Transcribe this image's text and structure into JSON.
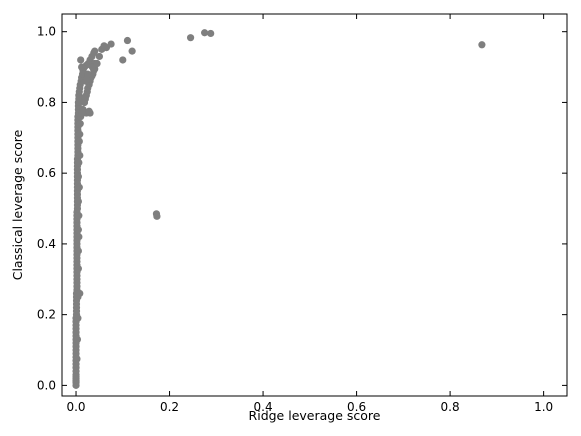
{
  "chart_data": {
    "type": "scatter",
    "title": "",
    "xlabel": "Ridge leverage score",
    "ylabel": "Classical leverage score",
    "xlim": [
      -0.03,
      1.05
    ],
    "ylim": [
      -0.03,
      1.05
    ],
    "xticks": [
      0.0,
      0.2,
      0.4,
      0.6,
      0.8,
      1.0
    ],
    "yticks": [
      0.0,
      0.2,
      0.4,
      0.6,
      0.8,
      1.0
    ],
    "xtick_labels": [
      "0.0",
      "0.2",
      "0.4",
      "0.6",
      "0.8",
      "1.0"
    ],
    "ytick_labels": [
      "0.0",
      "0.2",
      "0.4",
      "0.6",
      "0.8",
      "1.0"
    ],
    "grid": false,
    "legend": "none",
    "marker_color": "#7f7f7f",
    "points": [
      [
        0.0,
        0.0
      ],
      [
        0.0,
        0.01
      ],
      [
        0.0,
        0.02
      ],
      [
        0.0,
        0.03
      ],
      [
        0.0,
        0.04
      ],
      [
        0.0,
        0.05
      ],
      [
        0.0,
        0.06
      ],
      [
        0.0,
        0.07
      ],
      [
        0.0,
        0.08
      ],
      [
        0.0,
        0.09
      ],
      [
        0.0,
        0.1
      ],
      [
        0.0,
        0.11
      ],
      [
        0.0,
        0.12
      ],
      [
        0.0,
        0.13
      ],
      [
        0.0,
        0.14
      ],
      [
        0.0,
        0.15
      ],
      [
        0.0,
        0.16
      ],
      [
        0.0,
        0.17
      ],
      [
        0.0,
        0.18
      ],
      [
        0.0,
        0.19
      ],
      [
        0.001,
        0.2
      ],
      [
        0.001,
        0.21
      ],
      [
        0.001,
        0.22
      ],
      [
        0.001,
        0.23
      ],
      [
        0.001,
        0.24
      ],
      [
        0.001,
        0.25
      ],
      [
        0.001,
        0.26
      ],
      [
        0.002,
        0.27
      ],
      [
        0.002,
        0.28
      ],
      [
        0.002,
        0.29
      ],
      [
        0.002,
        0.3
      ],
      [
        0.002,
        0.31
      ],
      [
        0.002,
        0.32
      ],
      [
        0.002,
        0.33
      ],
      [
        0.002,
        0.34
      ],
      [
        0.002,
        0.35
      ],
      [
        0.002,
        0.36
      ],
      [
        0.002,
        0.37
      ],
      [
        0.002,
        0.38
      ],
      [
        0.002,
        0.39
      ],
      [
        0.002,
        0.4
      ],
      [
        0.002,
        0.41
      ],
      [
        0.002,
        0.42
      ],
      [
        0.002,
        0.43
      ],
      [
        0.002,
        0.44
      ],
      [
        0.002,
        0.45
      ],
      [
        0.002,
        0.46
      ],
      [
        0.002,
        0.47
      ],
      [
        0.002,
        0.48
      ],
      [
        0.002,
        0.49
      ],
      [
        0.003,
        0.5
      ],
      [
        0.003,
        0.51
      ],
      [
        0.003,
        0.52
      ],
      [
        0.003,
        0.53
      ],
      [
        0.003,
        0.54
      ],
      [
        0.003,
        0.55
      ],
      [
        0.003,
        0.56
      ],
      [
        0.003,
        0.57
      ],
      [
        0.003,
        0.58
      ],
      [
        0.003,
        0.59
      ],
      [
        0.003,
        0.6
      ],
      [
        0.003,
        0.61
      ],
      [
        0.003,
        0.62
      ],
      [
        0.003,
        0.63
      ],
      [
        0.003,
        0.64
      ],
      [
        0.004,
        0.65
      ],
      [
        0.004,
        0.66
      ],
      [
        0.004,
        0.67
      ],
      [
        0.004,
        0.68
      ],
      [
        0.004,
        0.69
      ],
      [
        0.004,
        0.7
      ],
      [
        0.004,
        0.71
      ],
      [
        0.004,
        0.72
      ],
      [
        0.004,
        0.73
      ],
      [
        0.004,
        0.74
      ],
      [
        0.004,
        0.75
      ],
      [
        0.004,
        0.76
      ],
      [
        0.005,
        0.77
      ],
      [
        0.005,
        0.78
      ],
      [
        0.005,
        0.79
      ],
      [
        0.005,
        0.8
      ],
      [
        0.006,
        0.81
      ],
      [
        0.006,
        0.82
      ],
      [
        0.007,
        0.83
      ],
      [
        0.008,
        0.84
      ],
      [
        0.009,
        0.85
      ],
      [
        0.011,
        0.86
      ],
      [
        0.012,
        0.87
      ],
      [
        0.014,
        0.88
      ],
      [
        0.015,
        0.89
      ],
      [
        0.018,
        0.9
      ],
      [
        0.022,
        0.905
      ],
      [
        0.026,
        0.91
      ],
      [
        0.03,
        0.92
      ],
      [
        0.034,
        0.93
      ],
      [
        0.038,
        0.94
      ],
      [
        0.04,
        0.945
      ],
      [
        0.005,
        0.38
      ],
      [
        0.006,
        0.42
      ],
      [
        0.005,
        0.52
      ],
      [
        0.002,
        0.075
      ],
      [
        0.003,
        0.13
      ],
      [
        0.004,
        0.19
      ],
      [
        0.004,
        0.25
      ],
      [
        0.008,
        0.26
      ],
      [
        0.005,
        0.33
      ],
      [
        0.005,
        0.44
      ],
      [
        0.006,
        0.48
      ],
      [
        0.007,
        0.56
      ],
      [
        0.005,
        0.59
      ],
      [
        0.006,
        0.63
      ],
      [
        0.008,
        0.65
      ],
      [
        0.007,
        0.69
      ],
      [
        0.008,
        0.71
      ],
      [
        0.009,
        0.74
      ],
      [
        0.01,
        0.76
      ],
      [
        0.012,
        0.77
      ],
      [
        0.015,
        0.78
      ],
      [
        0.018,
        0.8
      ],
      [
        0.02,
        0.81
      ],
      [
        0.022,
        0.82
      ],
      [
        0.024,
        0.83
      ],
      [
        0.025,
        0.84
      ],
      [
        0.028,
        0.85
      ],
      [
        0.03,
        0.86
      ],
      [
        0.032,
        0.87
      ],
      [
        0.034,
        0.875
      ],
      [
        0.036,
        0.88
      ],
      [
        0.038,
        0.89
      ],
      [
        0.04,
        0.895
      ],
      [
        0.018,
        0.8
      ],
      [
        0.019,
        0.815
      ],
      [
        0.021,
        0.86
      ],
      [
        0.023,
        0.865
      ],
      [
        0.025,
        0.88
      ],
      [
        0.012,
        0.9
      ],
      [
        0.01,
        0.92
      ],
      [
        0.022,
        0.77
      ],
      [
        0.03,
        0.77
      ],
      [
        0.028,
        0.775
      ],
      [
        0.04,
        0.91
      ],
      [
        0.035,
        0.9
      ],
      [
        0.045,
        0.91
      ],
      [
        0.05,
        0.93
      ],
      [
        0.055,
        0.95
      ],
      [
        0.06,
        0.96
      ],
      [
        0.065,
        0.955
      ],
      [
        0.075,
        0.965
      ],
      [
        0.1,
        0.92
      ],
      [
        0.11,
        0.975
      ],
      [
        0.12,
        0.945
      ],
      [
        0.172,
        0.485
      ],
      [
        0.173,
        0.478
      ],
      [
        0.245,
        0.983
      ],
      [
        0.275,
        0.997
      ],
      [
        0.288,
        0.995
      ],
      [
        0.868,
        0.963
      ],
      [
        0.0,
        0.008
      ],
      [
        0.0,
        0.015
      ],
      [
        0.0,
        0.025
      ]
    ]
  }
}
